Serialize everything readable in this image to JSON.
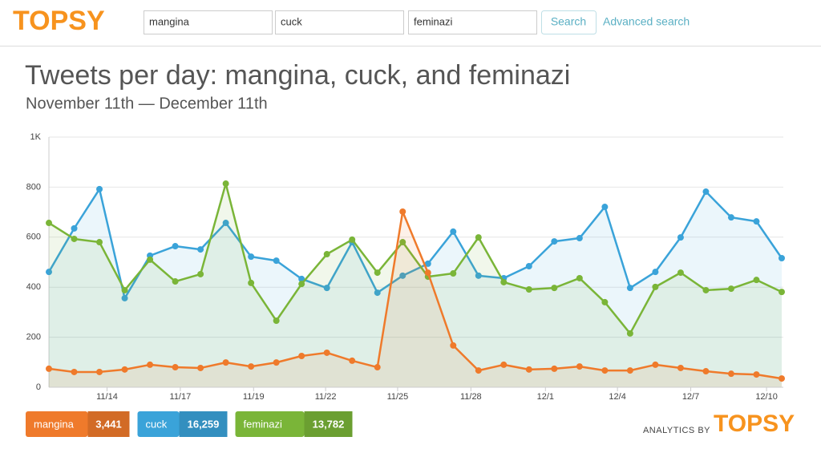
{
  "header": {
    "logo": "TOPSY",
    "search_terms": [
      "mangina",
      "cuck",
      "feminazi"
    ],
    "button": "Search",
    "link": "Advanced search"
  },
  "chart_data": {
    "type": "line",
    "title": "Tweets per day: mangina, cuck, and feminazi",
    "subtitle": "November 11th — December 11th",
    "categories": [
      null,
      null,
      null,
      null,
      null,
      null,
      null,
      null,
      null,
      null,
      null,
      null,
      null,
      null,
      null,
      null,
      null,
      null,
      null,
      null,
      null,
      null,
      null,
      null,
      null,
      null,
      null,
      null,
      null,
      null
    ],
    "xlim": [
      0,
      29
    ],
    "xticks": [
      {
        "value": 2.3,
        "label": "11/14"
      },
      {
        "value": 5.2,
        "label": "11/17"
      },
      {
        "value": 8.1,
        "label": "11/19"
      },
      {
        "value": 10.95,
        "label": "11/22"
      },
      {
        "value": 13.8,
        "label": "11/25"
      },
      {
        "value": 16.7,
        "label": "11/28"
      },
      {
        "value": 19.65,
        "label": "12/1"
      },
      {
        "value": 22.5,
        "label": "12/4"
      },
      {
        "value": 25.4,
        "label": "12/7"
      },
      {
        "value": 28.4,
        "label": "12/10"
      }
    ],
    "ylim": [
      0,
      1000
    ],
    "yticks": [
      0,
      200,
      400,
      600,
      800,
      {
        "value": 1000,
        "label": "1K"
      }
    ],
    "grid": true,
    "series": [
      {
        "name": "cuck",
        "color": "#3aa3d9",
        "total": {
          "value": 16259,
          "label": "16,259"
        },
        "values": [
          461,
          635,
          792,
          356,
          526,
          564,
          551,
          657,
          522,
          506,
          433,
          397,
          580,
          378,
          446,
          494,
          622,
          446,
          436,
          484,
          583,
          596,
          721,
          397,
          461,
          599,
          782,
          679,
          663,
          516
        ]
      },
      {
        "name": "feminazi",
        "color": "#7ab538",
        "total": {
          "value": 13782,
          "label": "13,782"
        },
        "values": [
          657,
          593,
          580,
          388,
          510,
          423,
          452,
          814,
          417,
          266,
          413,
          532,
          590,
          458,
          580,
          442,
          455,
          599,
          420,
          391,
          397,
          436,
          340,
          215,
          401,
          458,
          388,
          394,
          429,
          381
        ]
      },
      {
        "name": "mangina",
        "color": "#ef7a2b",
        "total": {
          "value": 3441,
          "label": "3,441"
        },
        "values": [
          74,
          61,
          61,
          71,
          90,
          80,
          77,
          99,
          83,
          99,
          125,
          138,
          106,
          80,
          702,
          458,
          167,
          67,
          90,
          71,
          74,
          83,
          67,
          67,
          90,
          77,
          64,
          54,
          51,
          35
        ]
      }
    ],
    "legend_order": [
      2,
      0,
      1
    ]
  },
  "footer": {
    "prefix": "ANALYTICS BY",
    "logo": "TOPSY"
  }
}
